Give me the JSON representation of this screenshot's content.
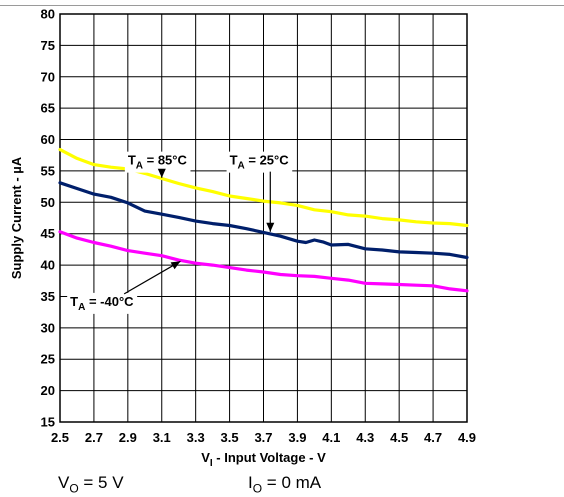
{
  "chart_data": {
    "type": "line",
    "xlabel_main": "V",
    "xlabel_sub": "I",
    "xlabel_rest": " - Input Voltage - V",
    "ylabel": "Supply Current - µA",
    "xlim": [
      2.5,
      4.9
    ],
    "ylim": [
      15,
      80
    ],
    "x_ticks": [
      "2.5",
      "2.7",
      "2.9",
      "3.1",
      "3.3",
      "3.5",
      "3.7",
      "3.9",
      "4.1",
      "4.3",
      "4.5",
      "4.7",
      "4.9"
    ],
    "y_ticks": [
      "15",
      "20",
      "25",
      "30",
      "35",
      "40",
      "45",
      "50",
      "55",
      "60",
      "65",
      "70",
      "75",
      "80"
    ],
    "grid": true,
    "series": [
      {
        "name": "85°C",
        "color": "#ffff00",
        "x": [
          2.5,
          2.6,
          2.7,
          2.8,
          2.9,
          3.0,
          3.1,
          3.2,
          3.3,
          3.4,
          3.5,
          3.6,
          3.7,
          3.8,
          3.9,
          4.0,
          4.1,
          4.2,
          4.3,
          4.4,
          4.5,
          4.6,
          4.7,
          4.8,
          4.9
        ],
        "y": [
          58.4,
          57.0,
          56.0,
          55.6,
          55.3,
          54.6,
          53.8,
          53.0,
          52.3,
          51.7,
          51.0,
          50.6,
          50.2,
          49.9,
          49.5,
          48.8,
          48.5,
          48.0,
          47.8,
          47.4,
          47.2,
          46.9,
          46.7,
          46.6,
          46.3
        ]
      },
      {
        "name": "25°C",
        "color": "#001f6b",
        "x": [
          2.5,
          2.6,
          2.7,
          2.8,
          2.9,
          3.0,
          3.1,
          3.2,
          3.3,
          3.4,
          3.5,
          3.6,
          3.7,
          3.8,
          3.9,
          3.95,
          4.0,
          4.05,
          4.1,
          4.2,
          4.3,
          4.4,
          4.5,
          4.6,
          4.7,
          4.8,
          4.9
        ],
        "y": [
          53.1,
          52.2,
          51.3,
          50.8,
          49.9,
          48.6,
          48.1,
          47.6,
          47.0,
          46.6,
          46.3,
          45.8,
          45.2,
          44.6,
          43.8,
          43.6,
          44.0,
          43.7,
          43.2,
          43.3,
          42.6,
          42.4,
          42.1,
          42.0,
          41.9,
          41.7,
          41.2
        ]
      },
      {
        "name": "-40°C",
        "color": "#ff00ff",
        "x": [
          2.5,
          2.6,
          2.7,
          2.8,
          2.9,
          3.0,
          3.1,
          3.2,
          3.3,
          3.4,
          3.5,
          3.6,
          3.7,
          3.8,
          3.9,
          4.0,
          4.1,
          4.2,
          4.3,
          4.4,
          4.5,
          4.6,
          4.7,
          4.8,
          4.9
        ],
        "y": [
          45.3,
          44.3,
          43.6,
          43.0,
          42.3,
          41.9,
          41.5,
          40.8,
          40.3,
          40.0,
          39.6,
          39.2,
          38.9,
          38.5,
          38.3,
          38.2,
          37.9,
          37.6,
          37.1,
          37.0,
          36.9,
          36.8,
          36.7,
          36.2,
          35.9
        ]
      }
    ],
    "annotations": [
      {
        "sub": "A",
        "value": " = 85°C",
        "at": [
          2.9,
          56.0
        ],
        "arrow_to": [
          3.1,
          53.9
        ]
      },
      {
        "sub": "A",
        "value": " = 25°C",
        "at": [
          3.5,
          56.0
        ],
        "arrow_to": [
          3.74,
          45.3
        ]
      },
      {
        "sub": "A",
        "value": " = -40°C",
        "at": [
          2.56,
          33.5
        ],
        "arrow_to": [
          3.21,
          40.6
        ]
      }
    ]
  },
  "conditions": {
    "vo_main": "V",
    "vo_sub": "O",
    "vo_rest": " = 5 V",
    "io_main": "I",
    "io_sub": "O",
    "io_rest": " = 0 mA"
  }
}
